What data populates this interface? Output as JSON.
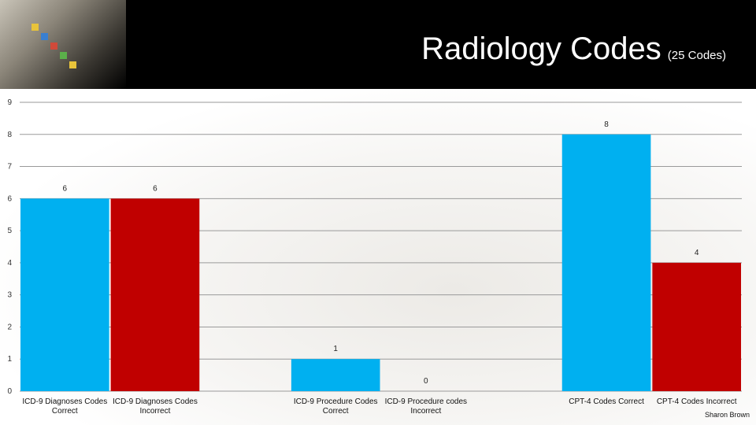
{
  "header": {
    "title": "Radiology Codes",
    "subtitle": "(25 Codes)",
    "image_icon": "medical-codes-stethoscope-image"
  },
  "credit": "Sharon Brown",
  "chart_data": {
    "type": "bar",
    "title": "Radiology Codes",
    "subtitle": "(25 Codes)",
    "xlabel": "",
    "ylabel": "",
    "ylim": [
      0,
      9
    ],
    "yticks": [
      0,
      1,
      2,
      3,
      4,
      5,
      6,
      7,
      8,
      9
    ],
    "grid": true,
    "legend": "none",
    "categories": [
      [
        "ICD-9 Diagnoses Codes",
        "Correct"
      ],
      [
        "ICD-9 Diagnoses Codes",
        "Incorrect"
      ],
      [
        "ICD-9 Procedure Codes",
        "Correct"
      ],
      [
        "ICD-9 Procedure codes",
        "Incorrect"
      ],
      [
        "CPT-4 Codes Correct"
      ],
      [
        "CPT-4 Codes Incorrect"
      ]
    ],
    "values": [
      6,
      6,
      1,
      0,
      8,
      4
    ],
    "colors": [
      "#00b0f0",
      "#c00000",
      "#00b0f0",
      "#c00000",
      "#00b0f0",
      "#c00000"
    ]
  }
}
